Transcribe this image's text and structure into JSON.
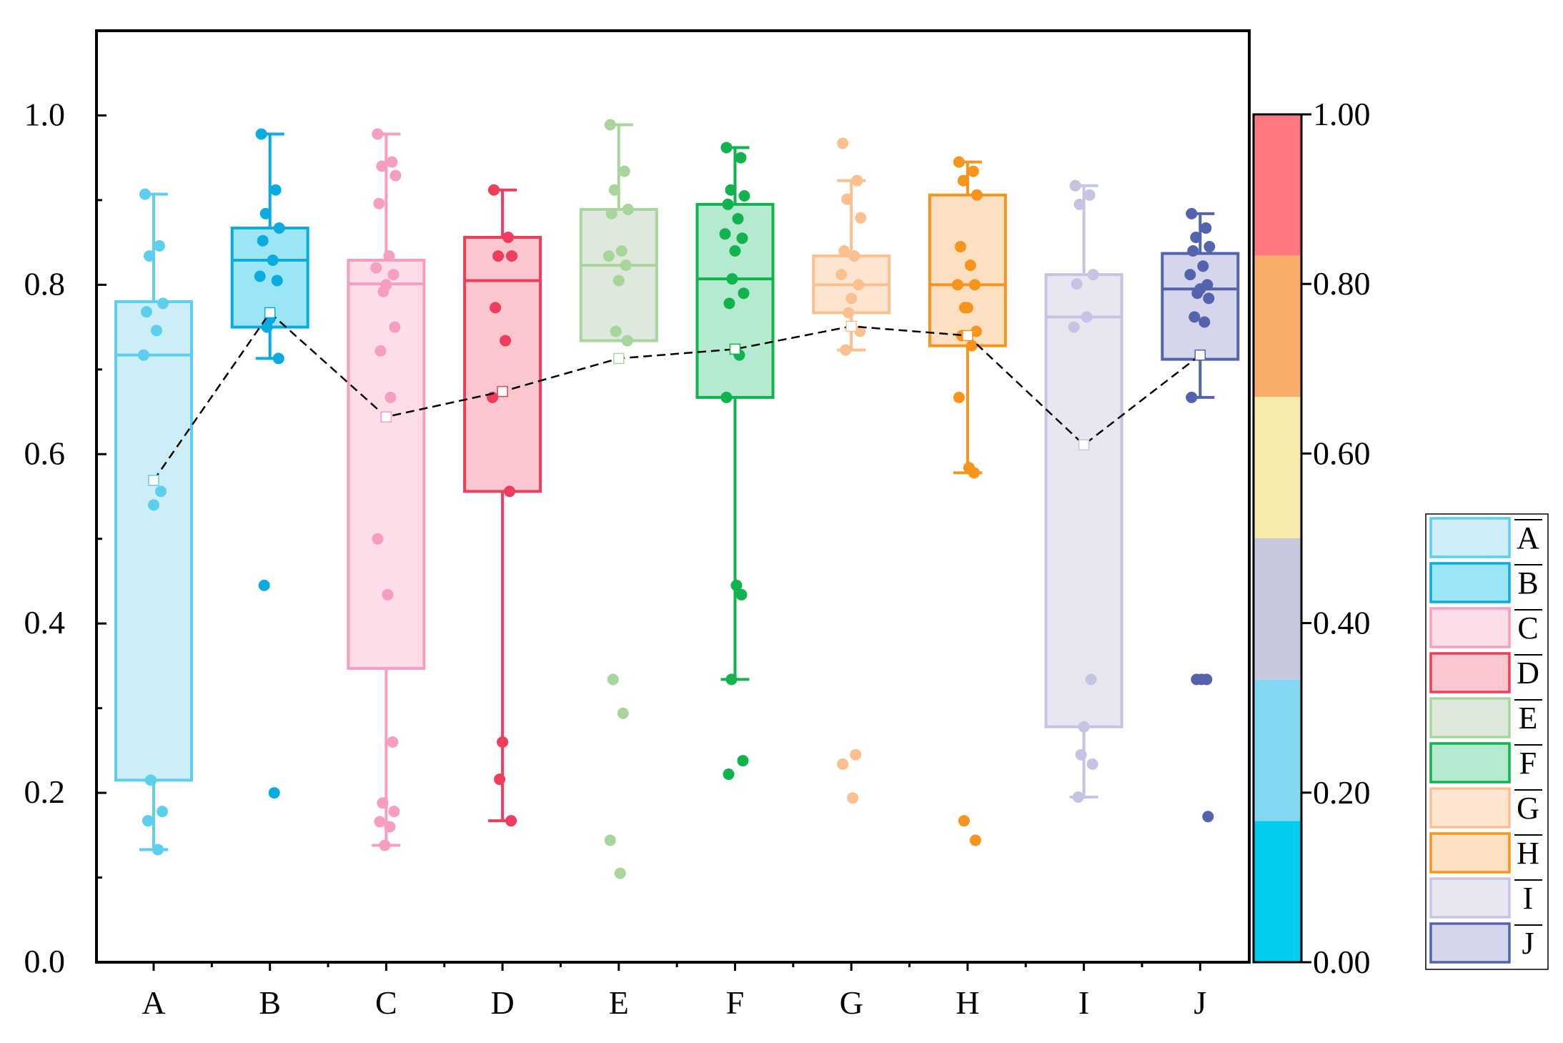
{
  "chart_data": {
    "type": "box",
    "title": "",
    "xlabel": "",
    "ylabel": "",
    "ylim": [
      0,
      1.1
    ],
    "y_ticks": [
      "0.0",
      "0.2",
      "0.4",
      "0.6",
      "0.8",
      "1.0"
    ],
    "categories": [
      "A",
      "B",
      "C",
      "D",
      "E",
      "F",
      "G",
      "H",
      "I",
      "J"
    ],
    "series": [
      {
        "name": "A",
        "color": "#5bcfec",
        "fill": "#cdeef7",
        "q1": 0.215,
        "median": 0.717,
        "q3": 0.78,
        "whisker_low": 0.133,
        "whisker_high": 0.907,
        "mean": 0.569,
        "points": [
          0.907,
          0.846,
          0.834,
          0.778,
          0.768,
          0.746,
          0.717,
          0.556,
          0.54,
          0.215,
          0.178,
          0.167,
          0.133
        ]
      },
      {
        "name": "B",
        "color": "#0aabdf",
        "fill": "#9ae6f6",
        "q1": 0.75,
        "median": 0.829,
        "q3": 0.867,
        "whisker_low": 0.713,
        "whisker_high": 0.978,
        "mean": 0.767,
        "points": [
          0.978,
          0.912,
          0.884,
          0.867,
          0.852,
          0.829,
          0.81,
          0.805,
          0.76,
          0.75,
          0.713,
          0.445,
          0.2
        ]
      },
      {
        "name": "C",
        "color": "#f59ec1",
        "fill": "#fddde8",
        "q1": 0.347,
        "median": 0.801,
        "q3": 0.829,
        "whisker_low": 0.138,
        "whisker_high": 0.978,
        "mean": 0.644,
        "points": [
          0.978,
          0.945,
          0.94,
          0.929,
          0.896,
          0.834,
          0.82,
          0.812,
          0.8,
          0.792,
          0.75,
          0.722,
          0.667,
          0.5,
          0.434,
          0.26,
          0.188,
          0.178,
          0.166,
          0.16,
          0.138
        ]
      },
      {
        "name": "D",
        "color": "#ef3d5d",
        "fill": "#fac7cf",
        "q1": 0.556,
        "median": 0.805,
        "q3": 0.856,
        "whisker_low": 0.167,
        "whisker_high": 0.912,
        "mean": 0.674,
        "points": [
          0.912,
          0.856,
          0.834,
          0.834,
          0.773,
          0.734,
          0.667,
          0.556,
          0.26,
          0.216,
          0.167
        ]
      },
      {
        "name": "E",
        "color": "#a7d59c",
        "fill": "#dfe8dc",
        "q1": 0.734,
        "median": 0.823,
        "q3": 0.889,
        "whisker_low": 0.734,
        "whisker_high": 0.989,
        "mean": 0.713,
        "points": [
          0.989,
          0.934,
          0.912,
          0.889,
          0.884,
          0.84,
          0.834,
          0.823,
          0.805,
          0.745,
          0.734,
          0.334,
          0.294,
          0.144,
          0.105
        ]
      },
      {
        "name": "F",
        "color": "#12b24f",
        "fill": "#b4ebd0",
        "q1": 0.667,
        "median": 0.807,
        "q3": 0.895,
        "whisker_low": 0.334,
        "whisker_high": 0.962,
        "mean": 0.724,
        "points": [
          0.962,
          0.95,
          0.912,
          0.905,
          0.895,
          0.878,
          0.86,
          0.855,
          0.84,
          0.807,
          0.79,
          0.778,
          0.717,
          0.667,
          0.445,
          0.434,
          0.334,
          0.238,
          0.222
        ]
      },
      {
        "name": "G",
        "color": "#fbc08f",
        "fill": "#fde5d1",
        "q1": 0.767,
        "median": 0.8,
        "q3": 0.834,
        "whisker_low": 0.723,
        "whisker_high": 0.923,
        "mean": 0.751,
        "points": [
          0.967,
          0.923,
          0.901,
          0.879,
          0.84,
          0.834,
          0.812,
          0.8,
          0.784,
          0.767,
          0.745,
          0.723,
          0.245,
          0.234,
          0.194
        ]
      },
      {
        "name": "H",
        "color": "#f7941d",
        "fill": "#fde0c2",
        "q1": 0.728,
        "median": 0.8,
        "q3": 0.906,
        "whisker_low": 0.578,
        "whisker_high": 0.945,
        "mean": 0.74,
        "points": [
          0.945,
          0.934,
          0.923,
          0.906,
          0.845,
          0.823,
          0.8,
          0.8,
          0.773,
          0.773,
          0.745,
          0.74,
          0.728,
          0.667,
          0.584,
          0.578,
          0.167,
          0.144
        ]
      },
      {
        "name": "I",
        "color": "#c5c5e3",
        "fill": "#e8e7f1",
        "q1": 0.278,
        "median": 0.762,
        "q3": 0.812,
        "whisker_low": 0.195,
        "whisker_high": 0.917,
        "mean": 0.611,
        "points": [
          0.917,
          0.906,
          0.895,
          0.812,
          0.801,
          0.762,
          0.75,
          0.334,
          0.278,
          0.245,
          0.234,
          0.195
        ]
      },
      {
        "name": "J",
        "color": "#5463ad",
        "fill": "#d5d6ec",
        "q1": 0.712,
        "median": 0.795,
        "q3": 0.837,
        "whisker_low": 0.667,
        "whisker_high": 0.884,
        "mean": 0.717,
        "points": [
          0.884,
          0.867,
          0.856,
          0.845,
          0.84,
          0.822,
          0.812,
          0.8,
          0.795,
          0.79,
          0.784,
          0.762,
          0.756,
          0.667,
          0.334,
          0.334,
          0.334,
          0.172
        ]
      }
    ],
    "mean_line": {
      "style": "dashed",
      "color": "#000000"
    },
    "colorbar": {
      "ticks": [
        "0.00",
        "0.20",
        "0.40",
        "0.60",
        "0.80",
        "1.00"
      ],
      "segments": [
        {
          "from": 0.0,
          "to": 0.1667,
          "color": "#00ccf0"
        },
        {
          "from": 0.1667,
          "to": 0.3333,
          "color": "#82d8f2"
        },
        {
          "from": 0.3333,
          "to": 0.5,
          "color": "#c8c8dc"
        },
        {
          "from": 0.5,
          "to": 0.6667,
          "color": "#f6eba8"
        },
        {
          "from": 0.6667,
          "to": 0.8333,
          "color": "#f8ae6a"
        },
        {
          "from": 0.8333,
          "to": 1.0,
          "color": "#ff7880"
        }
      ]
    },
    "legend": {
      "position": "right",
      "entries": [
        "A",
        "B",
        "C",
        "D",
        "E",
        "F",
        "G",
        "H",
        "I",
        "J"
      ]
    }
  }
}
